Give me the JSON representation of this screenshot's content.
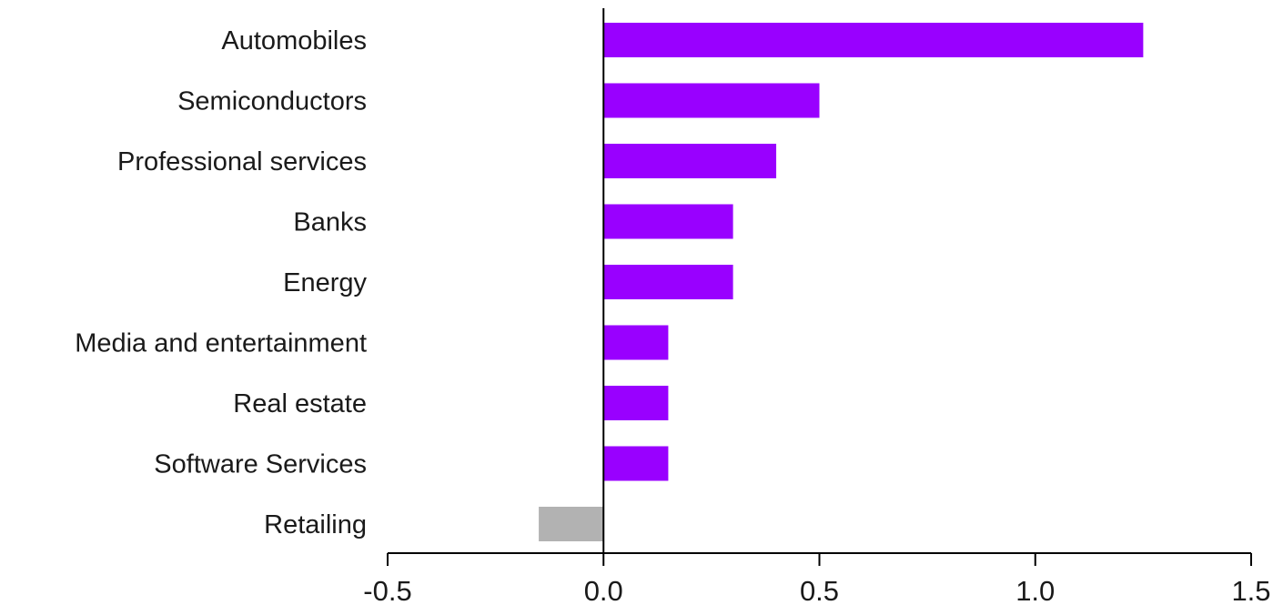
{
  "chart_data": {
    "type": "bar",
    "orientation": "horizontal",
    "categories": [
      "Automobiles",
      "Semiconductors",
      "Professional services",
      "Banks",
      "Energy",
      "Media and entertainment",
      "Real estate",
      "Software Services",
      "Retailing"
    ],
    "values": [
      1.25,
      0.5,
      0.4,
      0.3,
      0.3,
      0.15,
      0.15,
      0.15,
      -0.15
    ],
    "xlim": [
      -0.5,
      1.5
    ],
    "xticks": [
      -0.5,
      0.0,
      0.5,
      1.0,
      1.5
    ],
    "xtick_labels": [
      "-0.5",
      "0.0",
      "0.5",
      "1.0",
      "1.5"
    ],
    "grid": false,
    "legend": "none",
    "colors": {
      "positive": "#9900ff",
      "negative": "#b2b2b2",
      "axis": "#000000"
    }
  }
}
